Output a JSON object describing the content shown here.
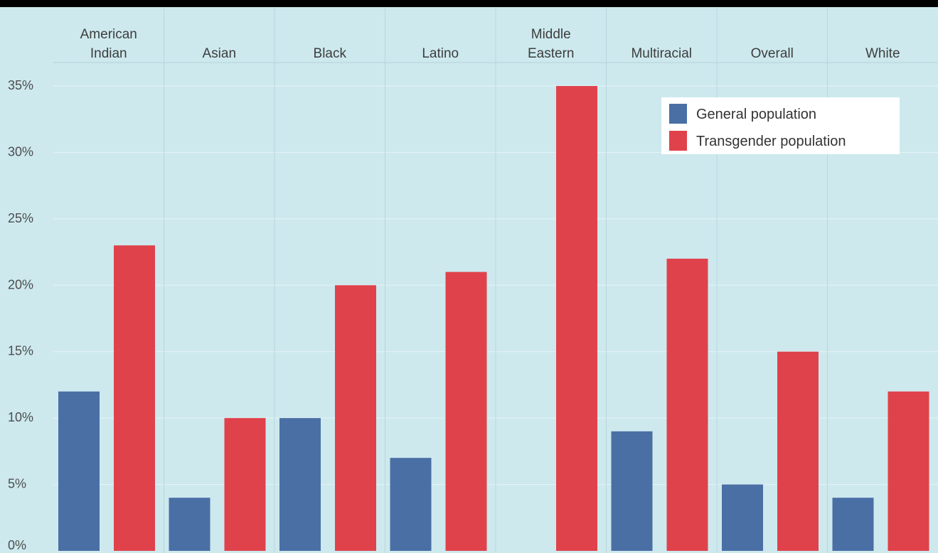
{
  "chart_data": {
    "type": "bar",
    "categories": [
      "American\nIndian",
      "Asian",
      "Black",
      "Latino",
      "Middle\nEastern",
      "Multiracial",
      "Overall",
      "White"
    ],
    "series": [
      {
        "name": "General population",
        "color": "#4a6fa5",
        "values": [
          12,
          4,
          10,
          7,
          0,
          9,
          5,
          4
        ]
      },
      {
        "name": "Transgender population",
        "color": "#e0424b",
        "values": [
          23,
          10,
          20,
          21,
          35,
          22,
          15,
          12
        ]
      }
    ],
    "yticks": [
      "0%",
      "5%",
      "10%",
      "15%",
      "20%",
      "25%",
      "30%",
      "35%"
    ],
    "ylim": [
      0,
      35
    ],
    "title": "",
    "xlabel": "",
    "ylabel": "",
    "legend_position": "top-right",
    "grid": true,
    "background_color": "#cde9ee",
    "category_label_position": "top"
  }
}
